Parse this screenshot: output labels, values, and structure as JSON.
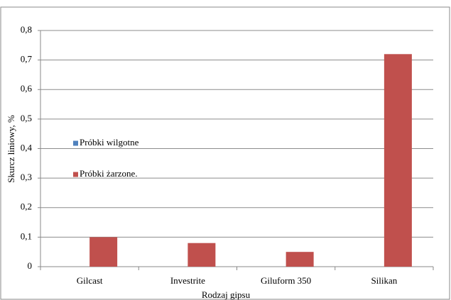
{
  "chart_data": {
    "type": "bar",
    "x_label": "Rodzaj gipsu",
    "y_label": "Skurcz liniowy, %",
    "categories": [
      "Gilcast",
      "Investrite",
      "Giluform 350",
      "Silikan"
    ],
    "series": [
      {
        "name": "Próbki wilgotne",
        "color": "#4f81bd",
        "values": [
          null,
          null,
          null,
          null
        ]
      },
      {
        "name": "Próbki żarzone.",
        "color": "#c0504d",
        "values": [
          0.1,
          0.08,
          0.05,
          0.72
        ]
      }
    ],
    "ylim": [
      0,
      0.8
    ],
    "yticks": [
      0,
      {
        "value": 0.1,
        "label": "0,1"
      },
      {
        "value": 0.2,
        "label": "0,2"
      },
      {
        "value": 0.3,
        "label": "0,3"
      },
      {
        "value": 0.4,
        "label": "0,4"
      },
      {
        "value": 0.5,
        "label": "0,5"
      },
      {
        "value": 0.6,
        "label": "0,6"
      },
      {
        "value": 0.7,
        "label": "0,7"
      },
      {
        "value": 0.8,
        "label": "0,8"
      }
    ],
    "grid": true
  }
}
